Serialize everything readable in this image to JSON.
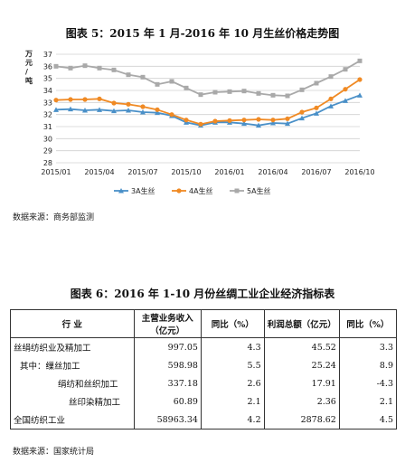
{
  "chart_title": "图表 5：2015 年 1 月-2016 年 10 月生丝价格走势图",
  "chart_source": "数据来源：商务部监测",
  "chart_data": {
    "type": "line",
    "ylabel": "万元/吨",
    "ylim": [
      28,
      37
    ],
    "yticks": [
      28,
      29,
      30,
      31,
      32,
      33,
      34,
      35,
      36,
      37
    ],
    "xtick_labels": [
      "2015/01",
      "2015/04",
      "2015/07",
      "2015/10",
      "2016/01",
      "2016/04",
      "2016/07",
      "2016/10"
    ],
    "x": [
      "2015/01",
      "2015/02",
      "2015/03",
      "2015/04",
      "2015/05",
      "2015/06",
      "2015/07",
      "2015/08",
      "2015/09",
      "2015/10",
      "2015/11",
      "2015/12",
      "2016/01",
      "2016/02",
      "2016/03",
      "2016/04",
      "2016/05",
      "2016/06",
      "2016/07",
      "2016/08",
      "2016/09",
      "2016/10"
    ],
    "grid": true,
    "legend_position": "bottom",
    "series": [
      {
        "name": "3A生丝",
        "color": "#4a90c8",
        "marker": "triangle",
        "values": [
          32.4,
          32.45,
          32.35,
          32.4,
          32.3,
          32.35,
          32.2,
          32.15,
          31.9,
          31.35,
          31.1,
          31.35,
          31.35,
          31.25,
          31.1,
          31.3,
          31.25,
          31.7,
          32.1,
          32.7,
          33.15,
          33.6
        ]
      },
      {
        "name": "4A生丝",
        "color": "#f08a24",
        "marker": "circle",
        "values": [
          33.2,
          33.25,
          33.25,
          33.3,
          32.95,
          32.85,
          32.65,
          32.4,
          32.0,
          31.55,
          31.2,
          31.45,
          31.5,
          31.55,
          31.6,
          31.55,
          31.65,
          32.2,
          32.55,
          33.3,
          34.1,
          34.9
        ]
      },
      {
        "name": "5A生丝",
        "color": "#a9a9a9",
        "marker": "square",
        "values": [
          36.0,
          35.85,
          36.05,
          35.85,
          35.7,
          35.3,
          35.1,
          34.5,
          34.75,
          34.2,
          33.65,
          33.85,
          33.9,
          33.95,
          33.75,
          33.6,
          33.55,
          34.05,
          34.6,
          35.15,
          35.75,
          36.45
        ]
      }
    ]
  },
  "table_title": "图表 6：2016 年 1-10 月份丝绸工业企业经济指标表",
  "table": {
    "headers": [
      "行    业",
      "主营业务收入（亿元）",
      "同比（%）",
      "利润总额（亿元）",
      "同比（%）"
    ],
    "rows": [
      {
        "name": "丝绢纺织业及精加工",
        "values": [
          "997.05",
          "4.3",
          "45.52",
          "3.3"
        ]
      },
      {
        "name": "其中：缫丝加工",
        "values": [
          "598.98",
          "5.5",
          "25.24",
          "8.9"
        ]
      },
      {
        "name": "绢纺和丝织加工",
        "values": [
          "337.18",
          "2.6",
          "17.91",
          "-4.3"
        ]
      },
      {
        "name": "丝印染精加工",
        "values": [
          "60.89",
          "2.1",
          "2.36",
          "2.1"
        ]
      },
      {
        "name": "全国纺织工业",
        "values": [
          "58963.34",
          "4.2",
          "2878.62",
          "4.5"
        ]
      }
    ]
  },
  "table_source": "数据来源：国家统计局"
}
